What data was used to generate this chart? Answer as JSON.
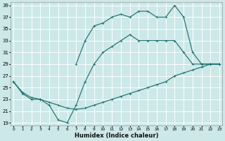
{
  "xlabel": "Humidex (Indice chaleur)",
  "bg_color": "#cce8e8",
  "grid_color": "#ffffff",
  "line_color": "#1a6b6b",
  "xlim": [
    0,
    23
  ],
  "ylim": [
    19,
    39
  ],
  "xticks": [
    0,
    1,
    2,
    3,
    4,
    5,
    6,
    7,
    8,
    9,
    10,
    11,
    12,
    13,
    14,
    15,
    16,
    17,
    18,
    19,
    20,
    21,
    22,
    23
  ],
  "yticks": [
    19,
    21,
    23,
    25,
    27,
    29,
    31,
    33,
    35,
    37,
    39
  ],
  "line1_x": [
    0,
    1,
    2,
    3,
    4,
    5,
    6,
    7,
    8,
    9,
    10,
    11,
    12,
    13,
    14,
    15,
    16,
    17,
    18,
    19,
    20,
    21,
    22,
    23
  ],
  "line1_y": [
    26.0,
    24.2,
    23.3,
    23.0,
    22.5,
    22.0,
    21.5,
    21.3,
    21.5,
    22.0,
    22.5,
    23.0,
    23.5,
    24.0,
    24.5,
    25.0,
    25.5,
    26.0,
    27.0,
    27.5,
    28.0,
    28.5,
    29.0,
    29.0
  ],
  "line2_x": [
    0,
    1,
    2,
    3,
    4,
    5,
    6,
    7,
    8,
    9,
    10,
    11,
    12,
    13,
    14,
    15,
    16,
    17,
    18,
    19,
    20,
    21,
    22,
    23
  ],
  "line2_y": [
    26.0,
    24.0,
    23.0,
    23.0,
    22.0,
    19.5,
    19.0,
    22.0,
    26.0,
    29.0,
    31.0,
    32.0,
    33.0,
    34.0,
    33.0,
    33.0,
    33.0,
    33.0,
    33.0,
    31.0,
    29.0,
    29.0,
    29.0,
    29.0
  ],
  "line3_x": [
    7,
    8,
    9,
    10,
    11,
    12,
    13,
    14,
    15,
    16,
    17,
    18,
    19,
    20,
    21,
    22,
    23
  ],
  "line3_y": [
    29.0,
    33.0,
    35.5,
    36.0,
    37.0,
    37.5,
    37.0,
    38.0,
    38.0,
    37.0,
    37.0,
    39.0,
    37.0,
    31.0,
    29.0,
    29.0,
    29.0
  ]
}
